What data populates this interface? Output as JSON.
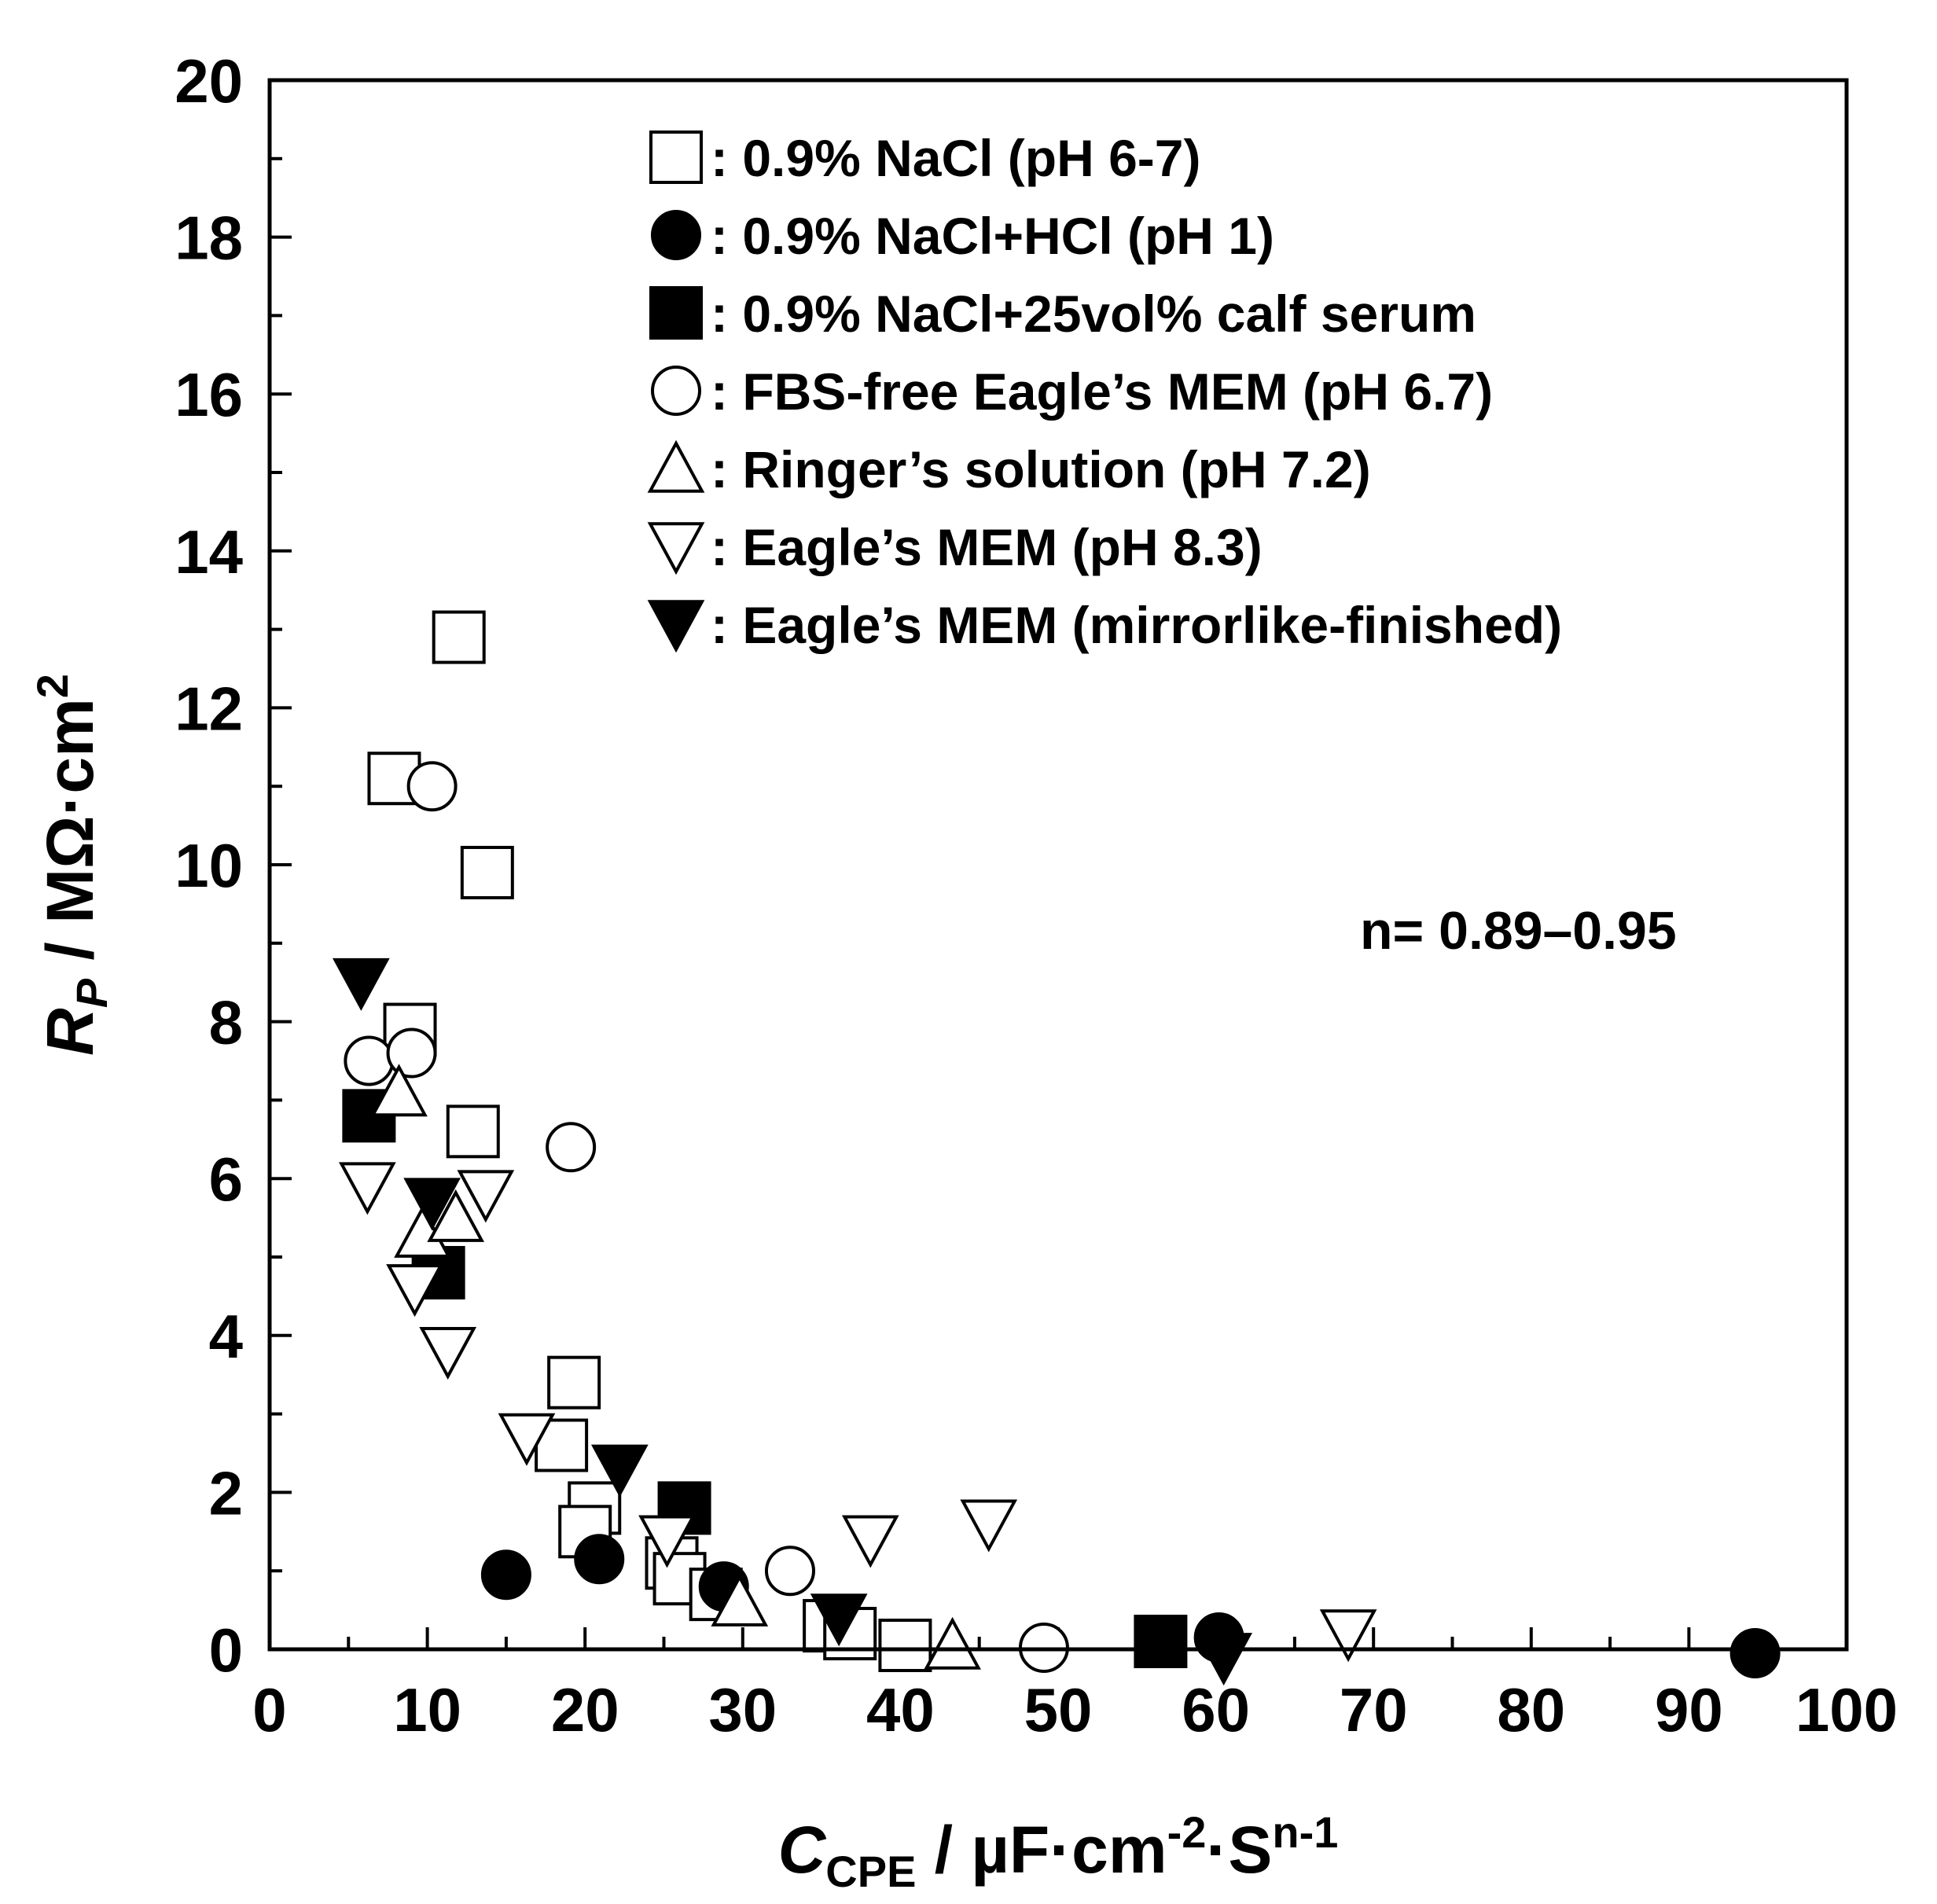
{
  "chart_data": {
    "type": "scatter",
    "xlabel": {
      "main": "C",
      "sub": "CPE",
      "unit": " / µF·cm",
      "sup1": "-2",
      "dot": "·S",
      "sup2": "n-1"
    },
    "ylabel": {
      "main": "R",
      "sub": "P",
      "unit": " / MΩ·cm",
      "sup": "2"
    },
    "xlim": [
      0,
      100
    ],
    "ylim": [
      0,
      20
    ],
    "x_ticks": [
      0,
      10,
      20,
      30,
      40,
      50,
      60,
      70,
      80,
      90,
      100
    ],
    "y_ticks": [
      0,
      2,
      4,
      6,
      8,
      10,
      12,
      14,
      16,
      18,
      20
    ],
    "annotation": "n= 0.89–0.95",
    "legend_position": "top-right",
    "series": [
      {
        "name": "0.9% NaCl (pH 6-7)",
        "legend_label": ": 0.9% NaCl (pH 6-7)",
        "marker": "square",
        "filled": false,
        "points": [
          [
            12,
            12.9
          ],
          [
            7.9,
            11.1
          ],
          [
            13.8,
            9.9
          ],
          [
            8.9,
            7.9
          ],
          [
            12.9,
            6.6
          ],
          [
            19.3,
            3.4
          ],
          [
            18.5,
            2.6
          ],
          [
            20.6,
            1.8
          ],
          [
            20,
            1.5
          ],
          [
            25.5,
            1.1
          ],
          [
            26,
            0.9
          ],
          [
            28.3,
            0.7
          ],
          [
            35.5,
            0.3
          ],
          [
            36.8,
            0.2
          ],
          [
            40.3,
            0.05
          ]
        ]
      },
      {
        "name": "0.9% NaCl+HCl (pH 1)",
        "legend_label": ": 0.9% NaCl+HCl (pH 1)",
        "marker": "circle",
        "filled": true,
        "points": [
          [
            15,
            0.95
          ],
          [
            20.9,
            1.15
          ],
          [
            28.8,
            0.8
          ],
          [
            60.2,
            0.15
          ],
          [
            94.2,
            -0.05
          ]
        ]
      },
      {
        "name": "0.9% NaCl+25vol% calf serum",
        "legend_label": ": 0.9% NaCl+25vol% calf serum",
        "marker": "square",
        "filled": true,
        "points": [
          [
            6.3,
            6.8
          ],
          [
            10.7,
            4.8
          ],
          [
            26.3,
            1.8
          ],
          [
            56.5,
            0.1
          ]
        ]
      },
      {
        "name": "FBS-free Eagle’s MEM (pH 6.7)",
        "legend_label": ": FBS-free Eagle’s MEM (pH 6.7)",
        "marker": "circle",
        "filled": false,
        "points": [
          [
            10.3,
            11
          ],
          [
            6.3,
            7.5
          ],
          [
            9,
            7.6
          ],
          [
            19.1,
            6.4
          ],
          [
            33,
            1
          ],
          [
            49.1,
            0.02
          ]
        ]
      },
      {
        "name": "Ringer’s solution (pH 7.2)",
        "legend_label": ": Ringer’s solution (pH 7.2)",
        "marker": "triangle-up",
        "filled": false,
        "points": [
          [
            8.2,
            7.1
          ],
          [
            9.7,
            5.3
          ],
          [
            11.8,
            5.5
          ],
          [
            29.8,
            0.6
          ],
          [
            43.3,
            0.05
          ]
        ]
      },
      {
        "name": "Eagle’s MEM (pH 8.3)",
        "legend_label": ": Eagle’s MEM (pH 8.3)",
        "marker": "triangle-down",
        "filled": false,
        "points": [
          [
            6.2,
            5.9
          ],
          [
            13.7,
            5.8
          ],
          [
            9.2,
            4.6
          ],
          [
            11.3,
            3.8
          ],
          [
            16.3,
            2.7
          ],
          [
            25.2,
            1.4
          ],
          [
            38.1,
            1.4
          ],
          [
            45.6,
            1.6
          ],
          [
            68.4,
            0.2
          ]
        ]
      },
      {
        "name": "Eagle’s MEM (mirrorlike-finished)",
        "legend_label": ": Eagle’s MEM (mirrorlike-finished)",
        "marker": "triangle-down",
        "filled": true,
        "points": [
          [
            5.8,
            8.5
          ],
          [
            10.3,
            5.7
          ],
          [
            22.2,
            2.3
          ],
          [
            36.1,
            0.4
          ],
          [
            60.5,
            -0.1
          ]
        ]
      }
    ]
  }
}
